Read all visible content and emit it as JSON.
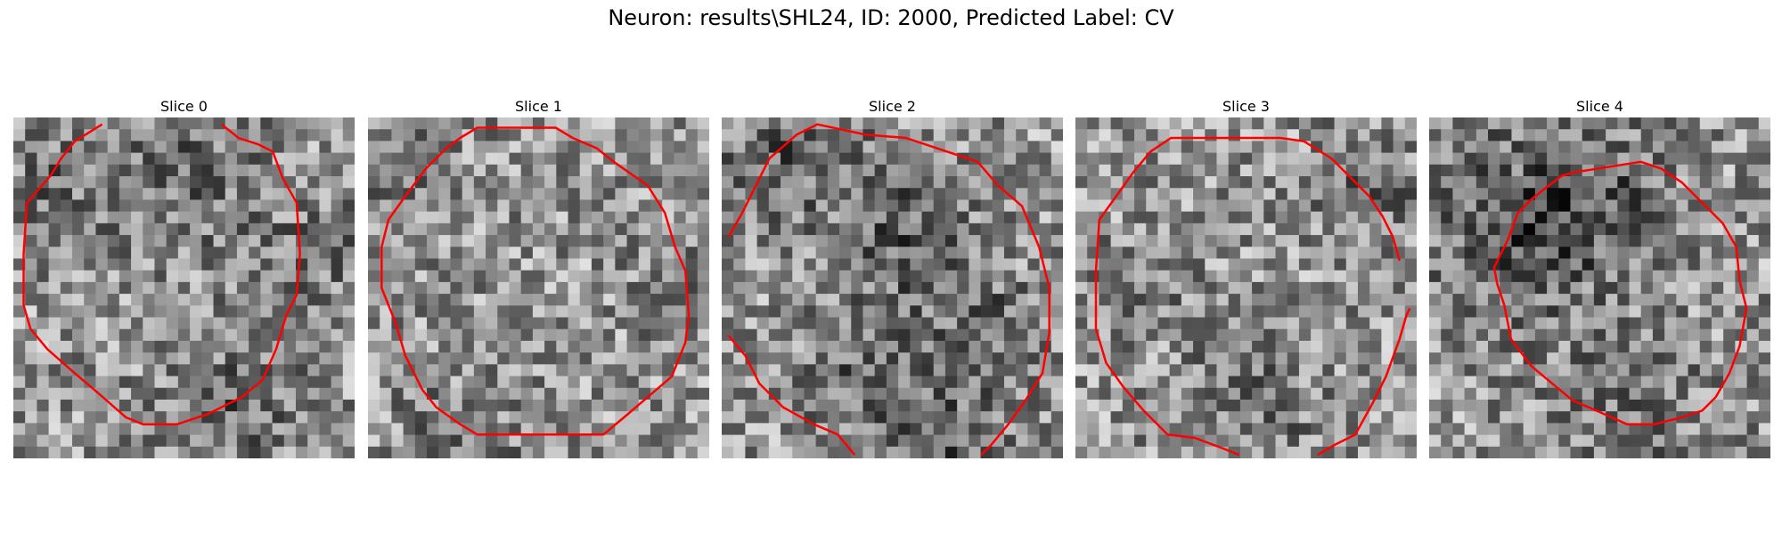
{
  "figure": {
    "title": "Neuron: results\\SHL24, ID: 2000, Predicted Label: CV"
  },
  "contour_color": "#ff0000",
  "slices": [
    {
      "title": "Slice 0",
      "seed": 11,
      "dark_regions": [
        [
          0.5,
          0.15,
          0.18,
          -40
        ],
        [
          0.65,
          0.85,
          0.15,
          -45
        ],
        [
          0.9,
          0.4,
          0.12,
          -30
        ],
        [
          0.1,
          0.2,
          0.1,
          -35
        ]
      ],
      "contour": [
        [
          0.26,
          0.02
        ],
        [
          0.18,
          0.07
        ],
        [
          0.14,
          0.12
        ],
        [
          0.11,
          0.17
        ],
        [
          0.04,
          0.25
        ],
        [
          0.03,
          0.4
        ],
        [
          0.03,
          0.55
        ],
        [
          0.05,
          0.62
        ],
        [
          0.1,
          0.68
        ],
        [
          0.18,
          0.75
        ],
        [
          0.25,
          0.81
        ],
        [
          0.33,
          0.88
        ],
        [
          0.38,
          0.9
        ],
        [
          0.48,
          0.9
        ],
        [
          0.57,
          0.87
        ],
        [
          0.67,
          0.82
        ],
        [
          0.73,
          0.77
        ],
        [
          0.77,
          0.68
        ],
        [
          0.8,
          0.58
        ],
        [
          0.83,
          0.52
        ],
        [
          0.84,
          0.4
        ],
        [
          0.83,
          0.25
        ],
        [
          0.79,
          0.18
        ],
        [
          0.76,
          0.1
        ],
        [
          0.72,
          0.08
        ],
        [
          0.66,
          0.06
        ],
        [
          0.61,
          0.02
        ]
      ],
      "closed": false
    },
    {
      "title": "Slice 1",
      "seed": 23,
      "dark_regions": [
        [
          0.1,
          0.1,
          0.12,
          -35
        ],
        [
          0.95,
          0.5,
          0.1,
          -40
        ],
        [
          0.3,
          0.95,
          0.15,
          -30
        ]
      ],
      "contour": [
        [
          0.32,
          0.03
        ],
        [
          0.55,
          0.03
        ],
        [
          0.6,
          0.06
        ],
        [
          0.67,
          0.09
        ],
        [
          0.72,
          0.13
        ],
        [
          0.82,
          0.2
        ],
        [
          0.87,
          0.28
        ],
        [
          0.9,
          0.38
        ],
        [
          0.93,
          0.45
        ],
        [
          0.94,
          0.58
        ],
        [
          0.93,
          0.66
        ],
        [
          0.89,
          0.76
        ],
        [
          0.82,
          0.82
        ],
        [
          0.75,
          0.88
        ],
        [
          0.69,
          0.93
        ],
        [
          0.32,
          0.93
        ],
        [
          0.27,
          0.9
        ],
        [
          0.2,
          0.85
        ],
        [
          0.16,
          0.8
        ],
        [
          0.11,
          0.7
        ],
        [
          0.08,
          0.6
        ],
        [
          0.04,
          0.5
        ],
        [
          0.04,
          0.38
        ],
        [
          0.06,
          0.3
        ],
        [
          0.11,
          0.23
        ],
        [
          0.17,
          0.15
        ],
        [
          0.23,
          0.09
        ],
        [
          0.27,
          0.06
        ]
      ],
      "closed": true
    },
    {
      "title": "Slice 2",
      "seed": 37,
      "dark_regions": [
        [
          0.55,
          0.35,
          0.14,
          -55
        ],
        [
          0.2,
          0.1,
          0.15,
          -50
        ],
        [
          0.6,
          0.95,
          0.18,
          -55
        ],
        [
          0.8,
          0.6,
          0.1,
          -40
        ],
        [
          0.4,
          0.7,
          0.12,
          -30
        ]
      ],
      "contour": [
        [
          0.02,
          0.35
        ],
        [
          0.06,
          0.28
        ],
        [
          0.1,
          0.2
        ],
        [
          0.14,
          0.12
        ],
        [
          0.22,
          0.05
        ],
        [
          0.28,
          0.02
        ],
        [
          0.42,
          0.05
        ],
        [
          0.54,
          0.06
        ],
        [
          0.66,
          0.1
        ],
        [
          0.75,
          0.13
        ],
        [
          0.81,
          0.2
        ],
        [
          0.88,
          0.26
        ],
        [
          0.93,
          0.38
        ],
        [
          0.96,
          0.5
        ],
        [
          0.96,
          0.63
        ],
        [
          0.94,
          0.75
        ],
        [
          0.89,
          0.83
        ],
        [
          0.84,
          0.9
        ],
        [
          0.79,
          0.96
        ],
        [
          0.76,
          0.99
        ]
      ],
      "tail": [
        [
          0.02,
          0.64
        ],
        [
          0.07,
          0.7
        ],
        [
          0.11,
          0.78
        ],
        [
          0.18,
          0.85
        ],
        [
          0.27,
          0.9
        ],
        [
          0.34,
          0.93
        ],
        [
          0.39,
          0.99
        ]
      ],
      "closed": false
    },
    {
      "title": "Slice 3",
      "seed": 51,
      "dark_regions": [
        [
          0.85,
          0.2,
          0.12,
          -40
        ],
        [
          0.5,
          0.85,
          0.15,
          -35
        ],
        [
          0.2,
          0.5,
          0.1,
          -25
        ]
      ],
      "contour": [
        [
          0.95,
          0.42
        ],
        [
          0.93,
          0.35
        ],
        [
          0.9,
          0.29
        ],
        [
          0.86,
          0.23
        ],
        [
          0.8,
          0.17
        ],
        [
          0.75,
          0.12
        ],
        [
          0.67,
          0.07
        ],
        [
          0.6,
          0.06
        ],
        [
          0.28,
          0.06
        ],
        [
          0.22,
          0.1
        ],
        [
          0.17,
          0.16
        ],
        [
          0.12,
          0.23
        ],
        [
          0.07,
          0.3
        ],
        [
          0.06,
          0.45
        ],
        [
          0.06,
          0.62
        ],
        [
          0.09,
          0.72
        ],
        [
          0.14,
          0.79
        ],
        [
          0.2,
          0.86
        ],
        [
          0.27,
          0.93
        ],
        [
          0.35,
          0.94
        ],
        [
          0.43,
          0.97
        ],
        [
          0.48,
          0.99
        ]
      ],
      "tail": [
        [
          0.71,
          0.99
        ],
        [
          0.76,
          0.96
        ],
        [
          0.82,
          0.93
        ],
        [
          0.87,
          0.84
        ],
        [
          0.91,
          0.76
        ],
        [
          0.95,
          0.65
        ],
        [
          0.97,
          0.58
        ],
        [
          0.98,
          0.56
        ]
      ],
      "closed": false
    },
    {
      "title": "Slice 4",
      "seed": 67,
      "dark_regions": [
        [
          0.45,
          0.25,
          0.16,
          -70
        ],
        [
          0.2,
          0.4,
          0.15,
          -45
        ],
        [
          0.55,
          0.85,
          0.18,
          -35
        ],
        [
          0.1,
          0.1,
          0.12,
          -20
        ]
      ],
      "contour": [
        [
          0.43,
          0.16
        ],
        [
          0.62,
          0.13
        ],
        [
          0.68,
          0.15
        ],
        [
          0.74,
          0.19
        ],
        [
          0.8,
          0.25
        ],
        [
          0.86,
          0.31
        ],
        [
          0.9,
          0.38
        ],
        [
          0.91,
          0.48
        ],
        [
          0.93,
          0.56
        ],
        [
          0.91,
          0.67
        ],
        [
          0.88,
          0.75
        ],
        [
          0.84,
          0.82
        ],
        [
          0.8,
          0.86
        ],
        [
          0.74,
          0.88
        ],
        [
          0.66,
          0.9
        ],
        [
          0.58,
          0.9
        ],
        [
          0.49,
          0.86
        ],
        [
          0.42,
          0.83
        ],
        [
          0.36,
          0.78
        ],
        [
          0.3,
          0.73
        ],
        [
          0.24,
          0.65
        ],
        [
          0.22,
          0.55
        ],
        [
          0.2,
          0.49
        ],
        [
          0.19,
          0.44
        ],
        [
          0.23,
          0.36
        ],
        [
          0.26,
          0.28
        ],
        [
          0.3,
          0.24
        ],
        [
          0.35,
          0.2
        ],
        [
          0.39,
          0.17
        ]
      ],
      "closed": true
    }
  ]
}
